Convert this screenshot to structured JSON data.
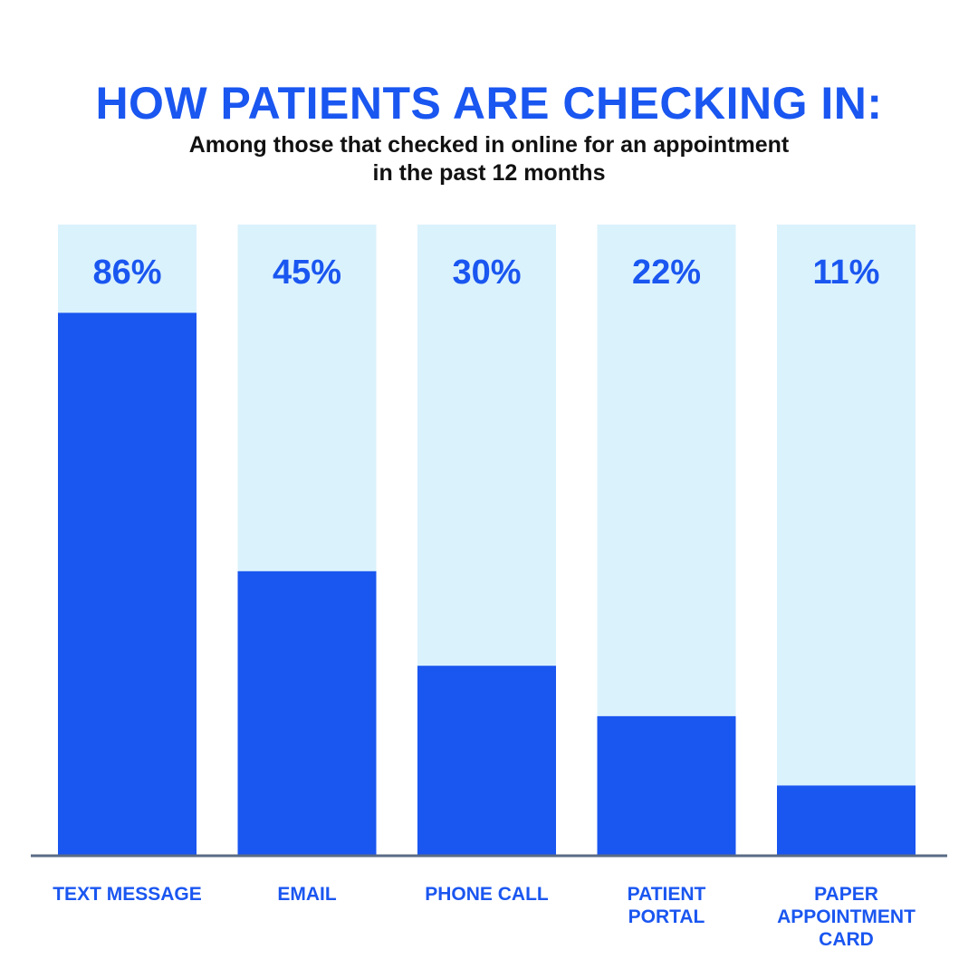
{
  "title": "HOW PATIENTS ARE CHECKING IN:",
  "subtitle_lines": [
    "Among those that checked in online for an appointment",
    "in the past 12 months"
  ],
  "colors": {
    "accent": "#1a56f0",
    "track": "#daf2fc",
    "baseline": "#5a6b85",
    "subtitle": "#111111"
  },
  "chart_data": {
    "type": "bar",
    "categories": [
      "TEXT MESSAGE",
      "EMAIL",
      "PHONE CALL",
      "PATIENT PORTAL",
      "PAPER APPOINTMENT CARD"
    ],
    "category_lines": [
      [
        "TEXT MESSAGE"
      ],
      [
        "EMAIL"
      ],
      [
        "PHONE CALL"
      ],
      [
        "PATIENT",
        "PORTAL"
      ],
      [
        "PAPER",
        "APPOINTMENT",
        "CARD"
      ]
    ],
    "values": [
      86,
      45,
      30,
      22,
      11
    ],
    "data_labels": [
      "86%",
      "45%",
      "30%",
      "22%",
      "11%"
    ],
    "ylim": [
      0,
      100
    ],
    "grid": false,
    "legend": "none"
  }
}
